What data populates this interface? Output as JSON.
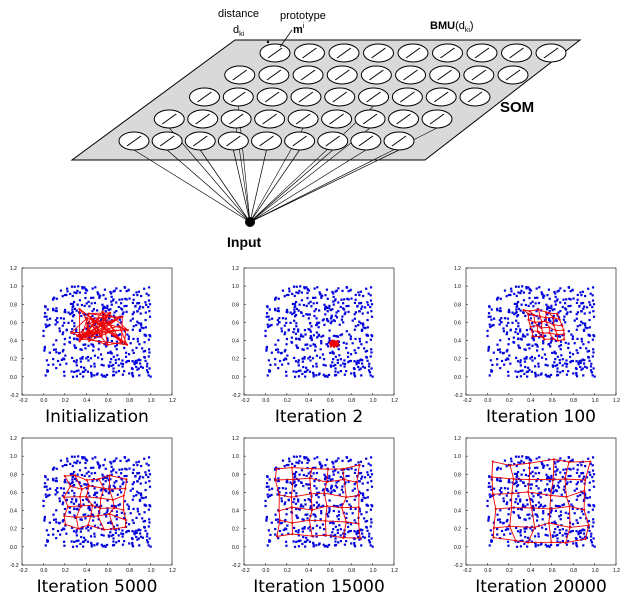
{
  "som": {
    "label_distance": "distance",
    "label_dki_main": "d",
    "label_dki_sub": "ki",
    "label_prototype": "prototype",
    "label_mi_main": "m",
    "label_mi_sup": "i",
    "label_bmu_main": "BMU",
    "label_bmu_open": "(d",
    "label_bmu_sub": "ki",
    "label_bmu_close": ")",
    "label_som": "SOM",
    "label_input": "Input",
    "grid_rows": 5,
    "grid_cols": 9
  },
  "panels": [
    {
      "caption": "Initialization",
      "state": "init"
    },
    {
      "caption": "Iteration 2",
      "state": "collapsed"
    },
    {
      "caption": "Iteration 100",
      "state": "small"
    },
    {
      "caption": "Iteration 5000",
      "state": "medium"
    },
    {
      "caption": "Iteration 15000",
      "state": "large"
    },
    {
      "caption": "Iteration 20000",
      "state": "full"
    }
  ],
  "axis_ticks": [
    "-0.2",
    "0.0",
    "0.2",
    "0.4",
    "0.6",
    "0.8",
    "1.0",
    "1.2"
  ],
  "colors": {
    "points": "#0000dd",
    "grid": "#ee0000",
    "plane": "#d9d9d9"
  }
}
